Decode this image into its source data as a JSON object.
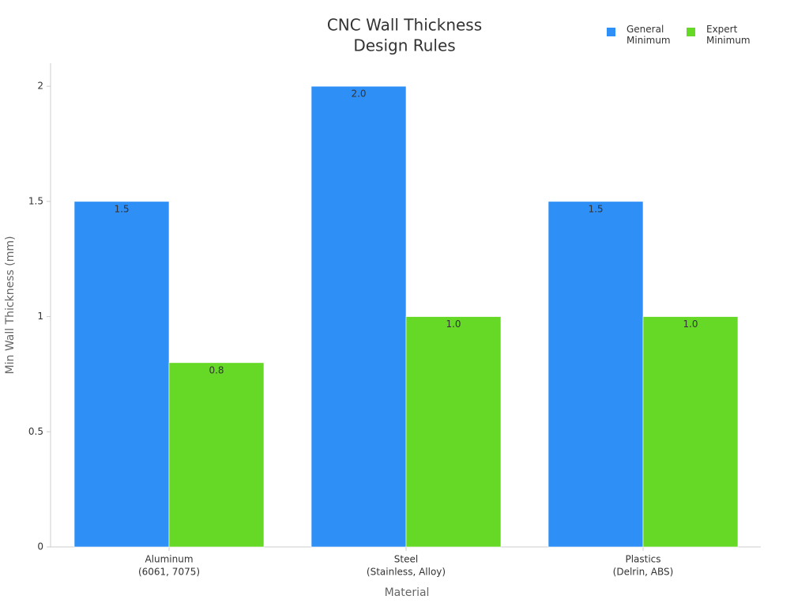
{
  "chart_data": {
    "type": "bar",
    "title": [
      "CNC Wall Thickness",
      "Design Rules"
    ],
    "categories": [
      [
        "Aluminum",
        "(6061, 7075)"
      ],
      [
        "Steel",
        "(Stainless, Alloy)"
      ],
      [
        "Plastics",
        "(Delrin, ABS)"
      ]
    ],
    "series": [
      {
        "name": "General Minimum",
        "color": "#2e8ff6",
        "values": [
          1.5,
          2,
          1.5
        ],
        "value_labels": [
          "1.5",
          "2.0",
          "1.5"
        ]
      },
      {
        "name": "Expert Minimum",
        "color": "#66d926",
        "values": [
          0.8,
          1,
          1
        ],
        "value_labels": [
          "0.8",
          "1.0",
          "1.0"
        ]
      }
    ],
    "x_label": "Material",
    "y_label": "Min Wall Thickness (mm)",
    "ylim": [
      0,
      2.1
    ],
    "yticks": [
      0,
      0.5,
      1,
      1.5,
      2
    ],
    "grid": false,
    "legend": "top-right"
  }
}
